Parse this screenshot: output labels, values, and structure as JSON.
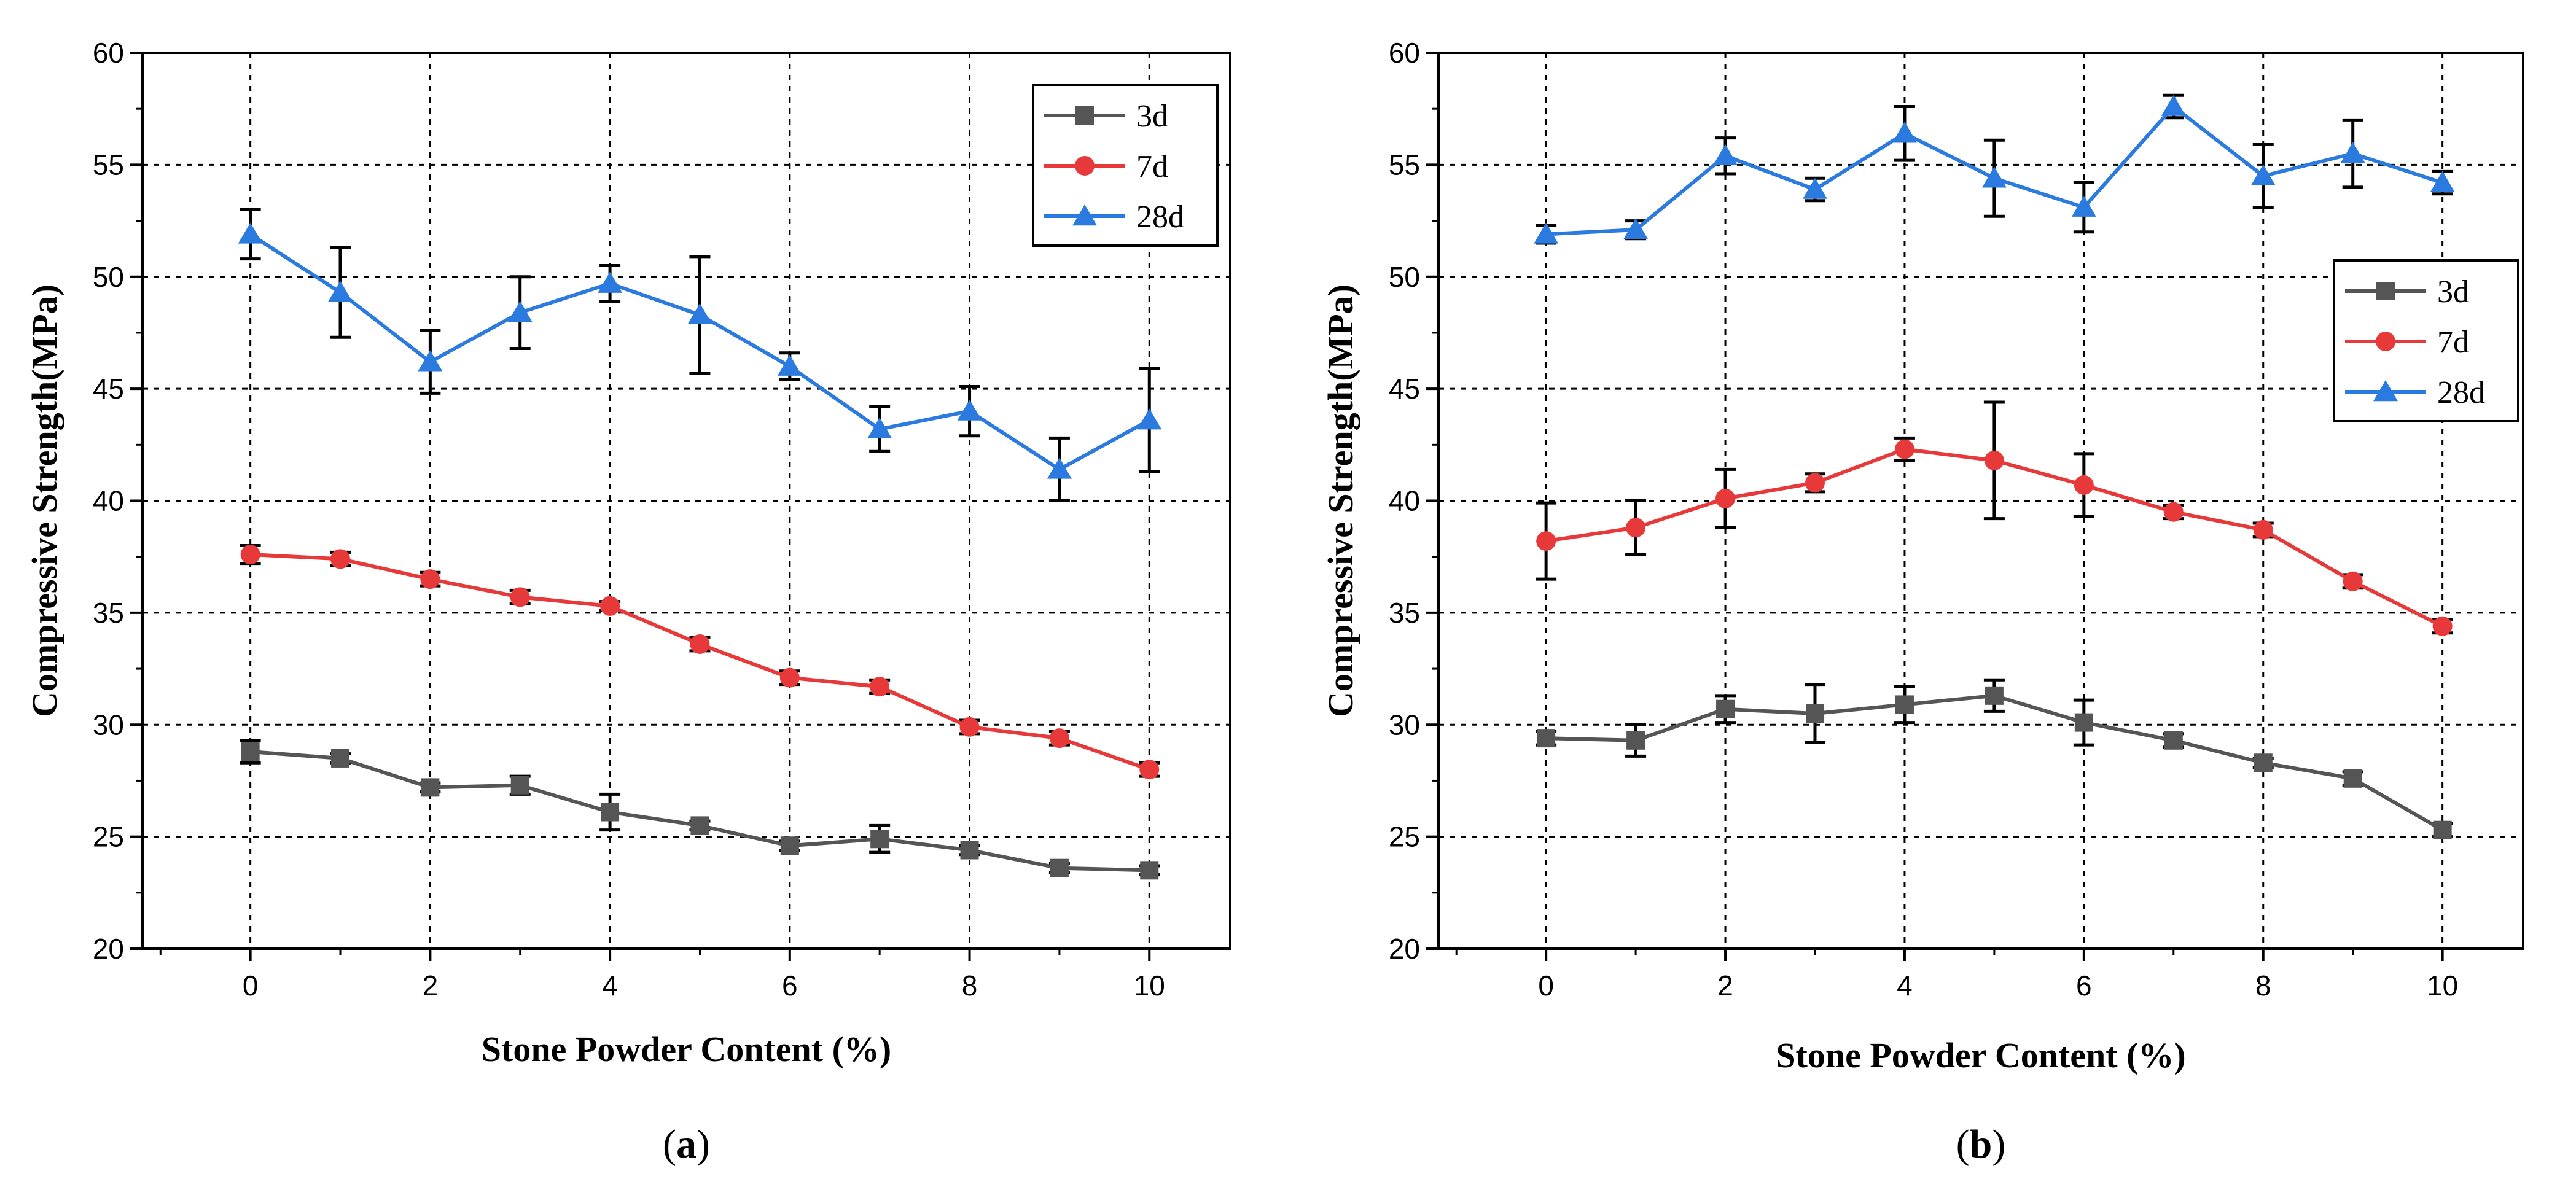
{
  "chart_data": [
    {
      "type": "line",
      "panel_label": "a",
      "xlabel": "Stone Powder Content (%)",
      "ylabel": "Compressive Strength(MPa)",
      "xlim": [
        -1.2,
        10.9
      ],
      "ylim": [
        20,
        60
      ],
      "xticks": [
        0,
        2,
        4,
        6,
        8,
        10
      ],
      "yticks": [
        20,
        25,
        30,
        35,
        40,
        45,
        50,
        55,
        60
      ],
      "grid": true,
      "legend_position": "top-right",
      "x": [
        0,
        1,
        2,
        3,
        4,
        5,
        6,
        7,
        8,
        9,
        10
      ],
      "series": [
        {
          "name": "3d",
          "marker": "square",
          "color": "#555555",
          "values": [
            28.8,
            28.5,
            27.2,
            27.3,
            26.1,
            25.5,
            24.6,
            24.9,
            24.4,
            23.6,
            23.5
          ],
          "errors": [
            0.5,
            0.2,
            0.2,
            0.4,
            0.8,
            0.2,
            0.2,
            0.6,
            0.2,
            0.2,
            0.2
          ]
        },
        {
          "name": "7d",
          "marker": "circle",
          "color": "#e8393a",
          "values": [
            37.6,
            37.4,
            36.5,
            35.7,
            35.3,
            33.6,
            32.1,
            31.7,
            29.9,
            29.4,
            28.0
          ],
          "errors": [
            0.4,
            0.3,
            0.3,
            0.3,
            0.2,
            0.3,
            0.3,
            0.3,
            0.3,
            0.3,
            0.3
          ]
        },
        {
          "name": "28d",
          "marker": "triangle",
          "color": "#2a7ae0",
          "values": [
            51.9,
            49.3,
            46.2,
            48.4,
            49.7,
            48.3,
            46.0,
            43.2,
            44.0,
            41.4,
            43.6
          ],
          "errors": [
            1.1,
            2.0,
            1.4,
            1.6,
            0.8,
            2.6,
            0.6,
            1.0,
            1.1,
            1.4,
            2.3
          ]
        }
      ]
    },
    {
      "type": "line",
      "panel_label": "b",
      "xlabel": "Stone Powder Content (%)",
      "ylabel": "Compressive Strength(MPa)",
      "xlim": [
        -1.2,
        10.9
      ],
      "ylim": [
        20,
        60
      ],
      "xticks": [
        0,
        2,
        4,
        6,
        8,
        10
      ],
      "yticks": [
        20,
        25,
        30,
        35,
        40,
        45,
        50,
        55,
        60
      ],
      "grid": true,
      "legend_position": "right",
      "x": [
        0,
        1,
        2,
        3,
        4,
        5,
        6,
        7,
        8,
        9,
        10
      ],
      "series": [
        {
          "name": "3d",
          "marker": "square",
          "color": "#555555",
          "values": [
            29.4,
            29.3,
            30.7,
            30.5,
            30.9,
            31.3,
            30.1,
            29.3,
            28.3,
            27.6,
            25.3
          ],
          "errors": [
            0.3,
            0.7,
            0.6,
            1.3,
            0.8,
            0.7,
            1.0,
            0.3,
            0.2,
            0.3,
            0.3
          ]
        },
        {
          "name": "7d",
          "marker": "circle",
          "color": "#e8393a",
          "values": [
            38.2,
            38.8,
            40.1,
            40.8,
            42.3,
            41.8,
            40.7,
            39.5,
            38.7,
            36.4,
            34.4
          ],
          "errors": [
            1.7,
            1.2,
            1.3,
            0.4,
            0.5,
            2.6,
            1.4,
            0.3,
            0.3,
            0.3,
            0.3
          ]
        },
        {
          "name": "28d",
          "marker": "triangle",
          "color": "#2a7ae0",
          "values": [
            51.9,
            52.1,
            55.4,
            53.9,
            56.4,
            54.4,
            53.1,
            57.6,
            54.5,
            55.5,
            54.2
          ],
          "errors": [
            0.4,
            0.4,
            0.8,
            0.5,
            1.2,
            1.7,
            1.1,
            0.5,
            1.4,
            1.5,
            0.5
          ]
        }
      ]
    }
  ]
}
